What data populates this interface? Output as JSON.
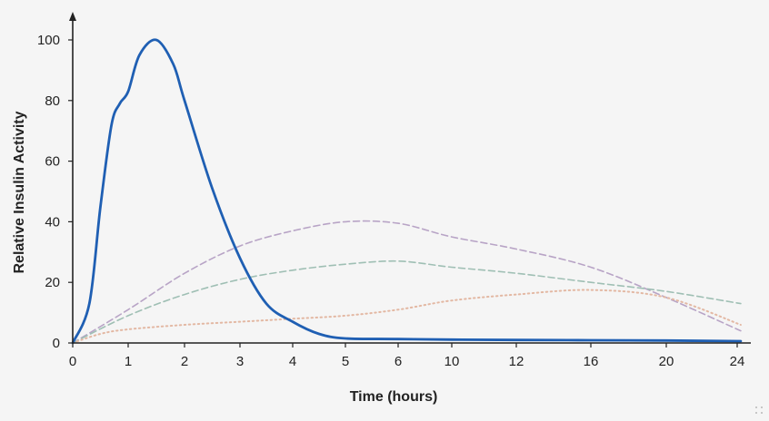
{
  "chart_data": {
    "type": "line",
    "title": "",
    "xlabel": "Time (hours)",
    "ylabel": "Relative Insulin Activity",
    "x_ticks": [
      "0",
      "1",
      "2",
      "3",
      "4",
      "5",
      "6",
      "10",
      "12",
      "16",
      "20",
      "24"
    ],
    "ylim": [
      0,
      100
    ],
    "y_ticks": [
      0,
      20,
      40,
      60,
      80,
      100
    ],
    "grid": false,
    "legend": "none",
    "series": [
      {
        "style": "solid",
        "color": "#1f5fb3",
        "points": [
          {
            "x": "0",
            "y": 0
          },
          {
            "x": "0.3",
            "y": 13
          },
          {
            "x": "0.5",
            "y": 45
          },
          {
            "x": "0.7",
            "y": 72
          },
          {
            "x": "0.85",
            "y": 79
          },
          {
            "x": "1",
            "y": 83
          },
          {
            "x": "1.2",
            "y": 95
          },
          {
            "x": "1.5",
            "y": 100
          },
          {
            "x": "1.8",
            "y": 92
          },
          {
            "x": "2",
            "y": 80
          },
          {
            "x": "2.5",
            "y": 51
          },
          {
            "x": "3",
            "y": 28
          },
          {
            "x": "3.5",
            "y": 13
          },
          {
            "x": "4",
            "y": 7
          },
          {
            "x": "4.5",
            "y": 3
          },
          {
            "x": "5",
            "y": 1.5
          },
          {
            "x": "6",
            "y": 1.3
          },
          {
            "x": "10",
            "y": 1.1
          },
          {
            "x": "12",
            "y": 1
          },
          {
            "x": "16",
            "y": 0.9
          },
          {
            "x": "20",
            "y": 0.8
          },
          {
            "x": "24.2",
            "y": 0.6
          }
        ]
      },
      {
        "style": "dashed",
        "color": "#b8a4c6",
        "points": [
          {
            "x": "0",
            "y": 0
          },
          {
            "x": "1",
            "y": 11
          },
          {
            "x": "2",
            "y": 23
          },
          {
            "x": "3",
            "y": 32
          },
          {
            "x": "4",
            "y": 37
          },
          {
            "x": "5",
            "y": 40
          },
          {
            "x": "6",
            "y": 39.5
          },
          {
            "x": "10",
            "y": 35
          },
          {
            "x": "12",
            "y": 31
          },
          {
            "x": "16",
            "y": 25
          },
          {
            "x": "20",
            "y": 15
          },
          {
            "x": "24.2",
            "y": 4
          }
        ]
      },
      {
        "style": "dashed",
        "color": "#9fbfb4",
        "points": [
          {
            "x": "0",
            "y": 0
          },
          {
            "x": "1",
            "y": 9
          },
          {
            "x": "2",
            "y": 16
          },
          {
            "x": "3",
            "y": 21
          },
          {
            "x": "4",
            "y": 24
          },
          {
            "x": "5",
            "y": 26
          },
          {
            "x": "6",
            "y": 27
          },
          {
            "x": "10",
            "y": 25
          },
          {
            "x": "12",
            "y": 23
          },
          {
            "x": "16",
            "y": 20
          },
          {
            "x": "20",
            "y": 17
          },
          {
            "x": "24.2",
            "y": 13
          }
        ]
      },
      {
        "style": "dotted",
        "color": "#e3b8a3",
        "points": [
          {
            "x": "0",
            "y": 0
          },
          {
            "x": "0.5",
            "y": 3
          },
          {
            "x": "1",
            "y": 4.5
          },
          {
            "x": "2",
            "y": 6
          },
          {
            "x": "3",
            "y": 7
          },
          {
            "x": "4",
            "y": 8
          },
          {
            "x": "5",
            "y": 9
          },
          {
            "x": "6",
            "y": 11
          },
          {
            "x": "10",
            "y": 14
          },
          {
            "x": "12",
            "y": 16
          },
          {
            "x": "16",
            "y": 17.5
          },
          {
            "x": "20",
            "y": 15
          },
          {
            "x": "24.2",
            "y": 6
          }
        ]
      }
    ]
  }
}
